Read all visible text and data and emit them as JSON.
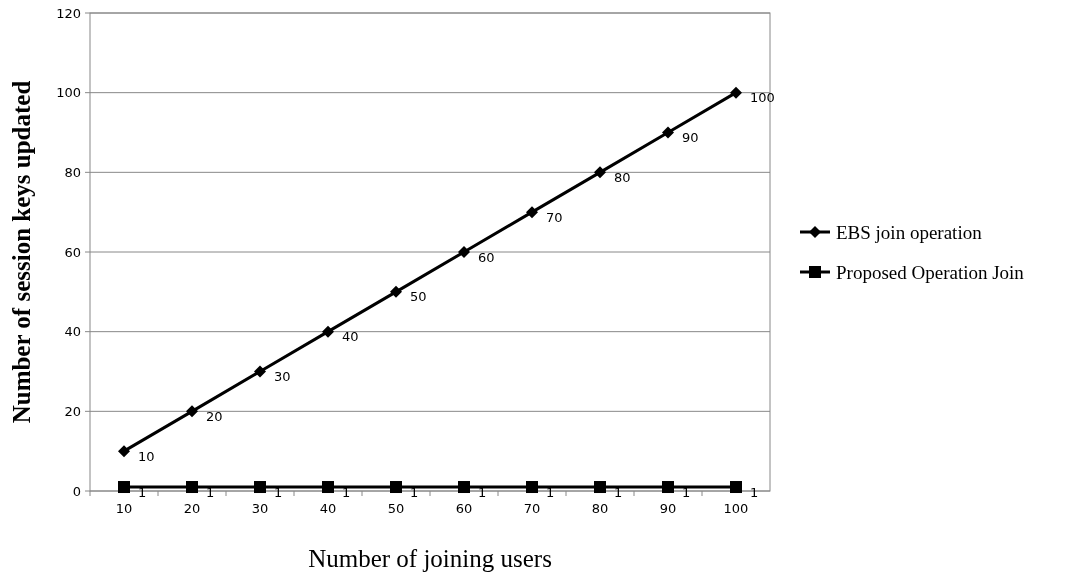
{
  "chart_data": {
    "type": "line",
    "xlabel": "Number of  joining users",
    "ylabel": "Number of session keys updated",
    "categories": [
      "10",
      "20",
      "30",
      "40",
      "50",
      "60",
      "70",
      "80",
      "90",
      "100"
    ],
    "series": [
      {
        "name": "EBS join operation",
        "color": "#000000",
        "marker": "diamond",
        "values": [
          10,
          20,
          30,
          40,
          50,
          60,
          70,
          80,
          90,
          100
        ]
      },
      {
        "name": "Proposed Operation Join",
        "color": "#000000",
        "marker": "square",
        "values": [
          1,
          1,
          1,
          1,
          1,
          1,
          1,
          1,
          1,
          1
        ]
      }
    ],
    "ylim": [
      0,
      120
    ],
    "yticks": [
      0,
      20,
      40,
      60,
      80,
      100,
      120
    ],
    "grid": "y",
    "legend": "right",
    "data_labels": true,
    "line_style": "solid"
  }
}
